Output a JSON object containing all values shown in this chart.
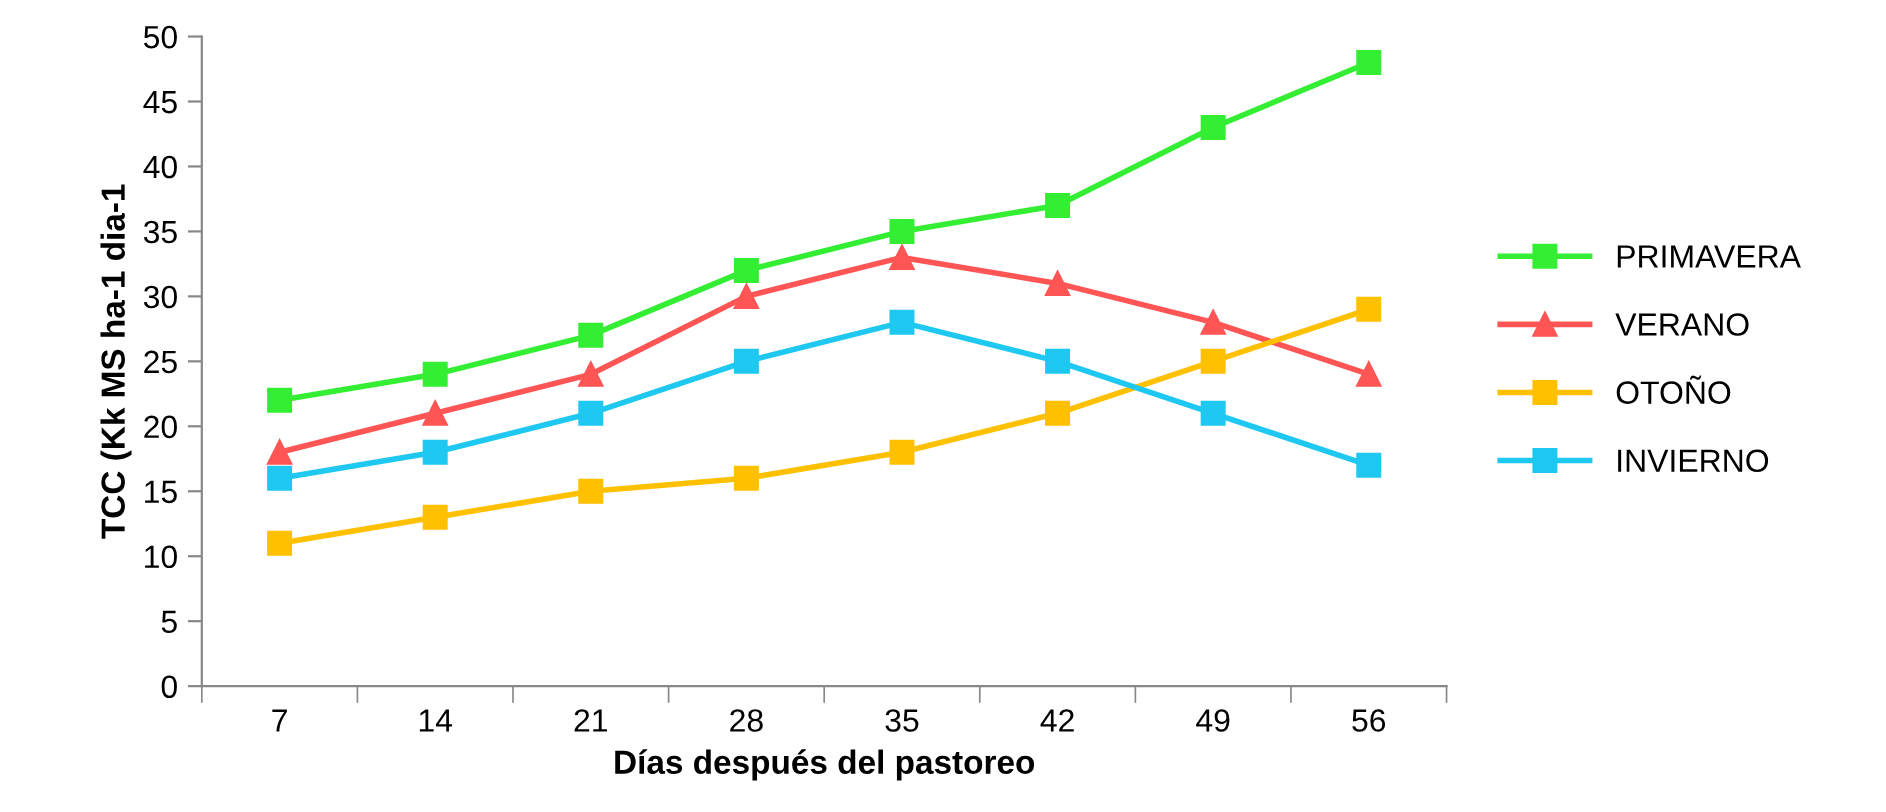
{
  "chart_data": {
    "type": "line",
    "xlabel": "Días después del pastoreo",
    "ylabel": "TCC (Kk MS ha-1 dia-1",
    "categories": [
      "7",
      "14",
      "21",
      "28",
      "35",
      "42",
      "49",
      "56"
    ],
    "ylim": [
      0,
      50
    ],
    "yticks": [
      0,
      5,
      10,
      15,
      20,
      25,
      30,
      35,
      40,
      45,
      50
    ],
    "grid": false,
    "legend": "right",
    "line_style": "solid",
    "series": [
      {
        "name": "PRIMAVERA",
        "color": "#33ee33",
        "marker": "square",
        "values": [
          22,
          24,
          27,
          32,
          35,
          37,
          43,
          48
        ]
      },
      {
        "name": "VERANO",
        "color": "#ff5555",
        "marker": "triangle",
        "values": [
          18,
          21,
          24,
          30,
          33,
          31,
          28,
          24
        ]
      },
      {
        "name": "OTOÑO",
        "color": "#ffc000",
        "marker": "square",
        "values": [
          11,
          13,
          15,
          16,
          18,
          21,
          25,
          29
        ]
      },
      {
        "name": "INVIERNO",
        "color": "#1ec8f0",
        "marker": "square",
        "values": [
          16,
          18,
          21,
          25,
          28,
          25,
          21,
          17
        ]
      }
    ]
  }
}
